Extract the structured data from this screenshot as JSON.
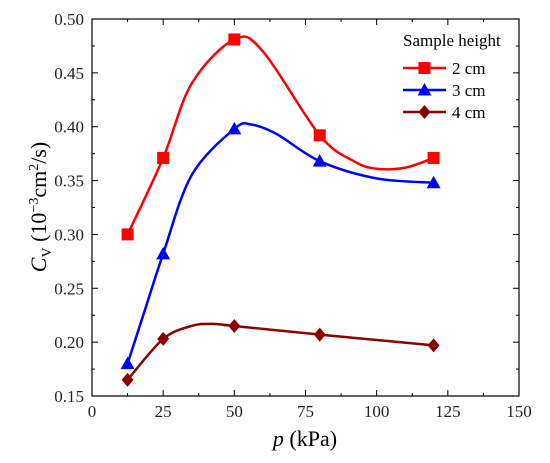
{
  "chart_data": {
    "type": "line",
    "xlabel_var": "p",
    "xlabel_unit": " (kPa)",
    "ylabel_var": "C",
    "ylabel_sub": "V",
    "ylabel_pre": " (10",
    "ylabel_exp1": "−3",
    "ylabel_mid": "cm",
    "ylabel_exp2": "2",
    "ylabel_post": "/s)",
    "xlim": [
      0,
      150
    ],
    "ylim": [
      0.15,
      0.5
    ],
    "xticks": [
      0,
      25,
      50,
      75,
      100,
      125,
      150
    ],
    "yticks": [
      0.15,
      0.2,
      0.25,
      0.3,
      0.35,
      0.4,
      0.45,
      0.5
    ],
    "ytick_labels": [
      "0.15",
      "0.20",
      "0.25",
      "0.30",
      "0.35",
      "0.40",
      "0.45",
      "0.50"
    ],
    "legend_title": "Sample height",
    "legend_position": "top-right",
    "series": [
      {
        "name": "2 cm",
        "color": "#ff0000",
        "marker": "square",
        "x": [
          12.5,
          25,
          50,
          80,
          120
        ],
        "values": [
          0.3,
          0.371,
          0.481,
          0.392,
          0.371
        ],
        "curve": [
          [
            12.5,
            0.3
          ],
          [
            25,
            0.371
          ],
          [
            35,
            0.44
          ],
          [
            50,
            0.481
          ],
          [
            60,
            0.47
          ],
          [
            80,
            0.392
          ],
          [
            92,
            0.368
          ],
          [
            100,
            0.361
          ],
          [
            110,
            0.362
          ],
          [
            120,
            0.371
          ]
        ]
      },
      {
        "name": "3 cm",
        "color": "#0000ff",
        "marker": "triangle",
        "x": [
          12.5,
          25,
          50,
          80,
          120
        ],
        "values": [
          0.18,
          0.282,
          0.398,
          0.368,
          0.348
        ],
        "curve": [
          [
            12.5,
            0.18
          ],
          [
            18,
            0.225
          ],
          [
            25,
            0.282
          ],
          [
            35,
            0.355
          ],
          [
            50,
            0.398
          ],
          [
            56,
            0.402
          ],
          [
            65,
            0.393
          ],
          [
            80,
            0.368
          ],
          [
            100,
            0.352
          ],
          [
            120,
            0.348
          ]
        ]
      },
      {
        "name": "4 cm",
        "color": "#8b0000",
        "marker": "diamond",
        "x": [
          12.5,
          25,
          50,
          80,
          120
        ],
        "values": [
          0.165,
          0.203,
          0.215,
          0.207,
          0.197
        ],
        "curve": [
          [
            12.5,
            0.165
          ],
          [
            25,
            0.203
          ],
          [
            35,
            0.215
          ],
          [
            42,
            0.217
          ],
          [
            50,
            0.215
          ],
          [
            80,
            0.207
          ],
          [
            120,
            0.197
          ]
        ]
      }
    ]
  }
}
